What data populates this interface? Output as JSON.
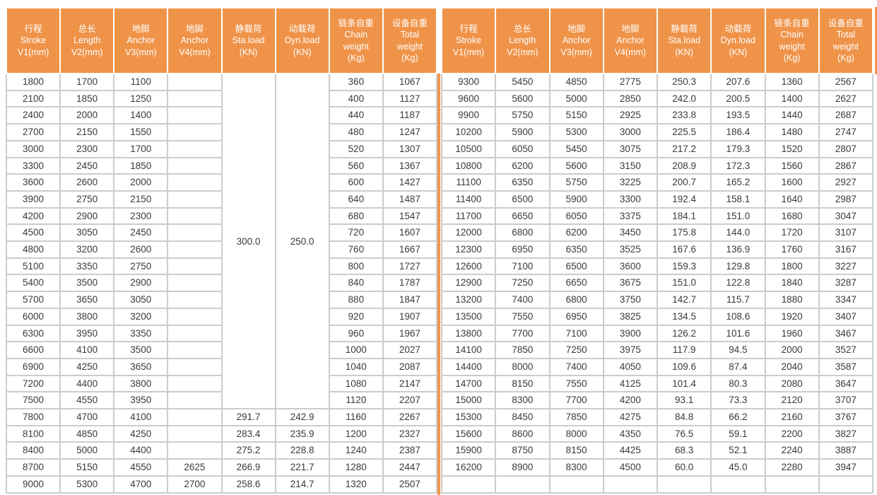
{
  "colors": {
    "accent_orange": "#EF9349",
    "grid_grey": "#CCCCCC",
    "text_grey": "#3A3A3A",
    "header_text": "#FFFFFF"
  },
  "header_columns": [
    {
      "name": "stroke",
      "lines": [
        "行程",
        "Stroke",
        "V1(mm)"
      ]
    },
    {
      "name": "length",
      "lines": [
        "总长",
        "Length",
        "V2(mm)"
      ]
    },
    {
      "name": "anchor-v3",
      "lines": [
        "地脚",
        "Anchor",
        "V3(mm)"
      ]
    },
    {
      "name": "anchor-v4",
      "lines": [
        "地脚",
        "Anchor",
        "V4(mm)"
      ]
    },
    {
      "name": "static-load",
      "lines": [
        "静载荷",
        "Sta.load",
        "(KN)"
      ]
    },
    {
      "name": "dynamic-load",
      "lines": [
        "动载荷",
        "Dyn.load",
        "(KN)"
      ]
    },
    {
      "name": "chain-weight",
      "lines": [
        "链条自重",
        "Chain",
        "weight",
        "(Kg)"
      ]
    },
    {
      "name": "total-weight",
      "lines": [
        "设备自重",
        "Total",
        "weight",
        "(Kg)"
      ]
    }
  ],
  "left_table": {
    "merged": {
      "start_row": 0,
      "row_count": 20,
      "sta_load": "300.0",
      "dyn_load": "250.0"
    },
    "rows": [
      [
        "1800",
        "1700",
        "1100",
        "",
        null,
        null,
        "360",
        "1067"
      ],
      [
        "2100",
        "1850",
        "1250",
        "",
        null,
        null,
        "400",
        "1127"
      ],
      [
        "2400",
        "2000",
        "1400",
        "",
        null,
        null,
        "440",
        "1187"
      ],
      [
        "2700",
        "2150",
        "1550",
        "",
        null,
        null,
        "480",
        "1247"
      ],
      [
        "3000",
        "2300",
        "1700",
        "",
        null,
        null,
        "520",
        "1307"
      ],
      [
        "3300",
        "2450",
        "1850",
        "",
        null,
        null,
        "560",
        "1367"
      ],
      [
        "3600",
        "2600",
        "2000",
        "",
        null,
        null,
        "600",
        "1427"
      ],
      [
        "3900",
        "2750",
        "2150",
        "",
        null,
        null,
        "640",
        "1487"
      ],
      [
        "4200",
        "2900",
        "2300",
        "",
        null,
        null,
        "680",
        "1547"
      ],
      [
        "4500",
        "3050",
        "2450",
        "",
        null,
        null,
        "720",
        "1607"
      ],
      [
        "4800",
        "3200",
        "2600",
        "",
        null,
        null,
        "760",
        "1667"
      ],
      [
        "5100",
        "3350",
        "2750",
        "",
        null,
        null,
        "800",
        "1727"
      ],
      [
        "5400",
        "3500",
        "2900",
        "",
        null,
        null,
        "840",
        "1787"
      ],
      [
        "5700",
        "3650",
        "3050",
        "",
        null,
        null,
        "880",
        "1847"
      ],
      [
        "6000",
        "3800",
        "3200",
        "",
        null,
        null,
        "920",
        "1907"
      ],
      [
        "6300",
        "3950",
        "3350",
        "",
        null,
        null,
        "960",
        "1967"
      ],
      [
        "6600",
        "4100",
        "3500",
        "",
        null,
        null,
        "1000",
        "2027"
      ],
      [
        "6900",
        "4250",
        "3650",
        "",
        null,
        null,
        "1040",
        "2087"
      ],
      [
        "7200",
        "4400",
        "3800",
        "",
        null,
        null,
        "1080",
        "2147"
      ],
      [
        "7500",
        "4550",
        "3950",
        "",
        null,
        null,
        "1120",
        "2207"
      ],
      [
        "7800",
        "4700",
        "4100",
        "",
        "291.7",
        "242.9",
        "1160",
        "2267"
      ],
      [
        "8100",
        "4850",
        "4250",
        "",
        "283.4",
        "235.9",
        "1200",
        "2327"
      ],
      [
        "8400",
        "5000",
        "4400",
        "",
        "275.2",
        "228.8",
        "1240",
        "2387"
      ],
      [
        "8700",
        "5150",
        "4550",
        "2625",
        "266.9",
        "221.7",
        "1280",
        "2447"
      ],
      [
        "9000",
        "5300",
        "4700",
        "2700",
        "258.6",
        "214.7",
        "1320",
        "2507"
      ]
    ]
  },
  "right_table": {
    "rows": [
      [
        "9300",
        "5450",
        "4850",
        "2775",
        "250.3",
        "207.6",
        "1360",
        "2567"
      ],
      [
        "9600",
        "5600",
        "5000",
        "2850",
        "242.0",
        "200.5",
        "1400",
        "2627"
      ],
      [
        "9900",
        "5750",
        "5150",
        "2925",
        "233.8",
        "193.5",
        "1440",
        "2687"
      ],
      [
        "10200",
        "5900",
        "5300",
        "3000",
        "225.5",
        "186.4",
        "1480",
        "2747"
      ],
      [
        "10500",
        "6050",
        "5450",
        "3075",
        "217.2",
        "179.3",
        "1520",
        "2807"
      ],
      [
        "10800",
        "6200",
        "5600",
        "3150",
        "208.9",
        "172.3",
        "1560",
        "2867"
      ],
      [
        "11100",
        "6350",
        "5750",
        "3225",
        "200.7",
        "165.2",
        "1600",
        "2927"
      ],
      [
        "11400",
        "6500",
        "5900",
        "3300",
        "192.4",
        "158.1",
        "1640",
        "2987"
      ],
      [
        "11700",
        "6650",
        "6050",
        "3375",
        "184.1",
        "151.0",
        "1680",
        "3047"
      ],
      [
        "12000",
        "6800",
        "6200",
        "3450",
        "175.8",
        "144.0",
        "1720",
        "3107"
      ],
      [
        "12300",
        "6950",
        "6350",
        "3525",
        "167.6",
        "136.9",
        "1760",
        "3167"
      ],
      [
        "12600",
        "7100",
        "6500",
        "3600",
        "159.3",
        "129.8",
        "1800",
        "3227"
      ],
      [
        "12900",
        "7250",
        "6650",
        "3675",
        "151.0",
        "122.8",
        "1840",
        "3287"
      ],
      [
        "13200",
        "7400",
        "6800",
        "3750",
        "142.7",
        "115.7",
        "1880",
        "3347"
      ],
      [
        "13500",
        "7550",
        "6950",
        "3825",
        "134.5",
        "108.6",
        "1920",
        "3407"
      ],
      [
        "13800",
        "7700",
        "7100",
        "3900",
        "126.2",
        "101.6",
        "1960",
        "3467"
      ],
      [
        "14100",
        "7850",
        "7250",
        "3975",
        "117.9",
        "94.5",
        "2000",
        "3527"
      ],
      [
        "14400",
        "8000",
        "7400",
        "4050",
        "109.6",
        "87.4",
        "2040",
        "3587"
      ],
      [
        "14700",
        "8150",
        "7550",
        "4125",
        "101.4",
        "80.3",
        "2080",
        "3647"
      ],
      [
        "15000",
        "8300",
        "7700",
        "4200",
        "93.1",
        "73.3",
        "2120",
        "3707"
      ],
      [
        "15300",
        "8450",
        "7850",
        "4275",
        "84.8",
        "66.2",
        "2160",
        "3767"
      ],
      [
        "15600",
        "8600",
        "8000",
        "4350",
        "76.5",
        "59.1",
        "2200",
        "3827"
      ],
      [
        "15900",
        "8750",
        "8150",
        "4425",
        "68.3",
        "52.1",
        "2240",
        "3887"
      ],
      [
        "16200",
        "8900",
        "8300",
        "4500",
        "60.0",
        "45.0",
        "2280",
        "3947"
      ],
      [
        "",
        "",
        "",
        "",
        "",
        "",
        "",
        ""
      ]
    ]
  }
}
